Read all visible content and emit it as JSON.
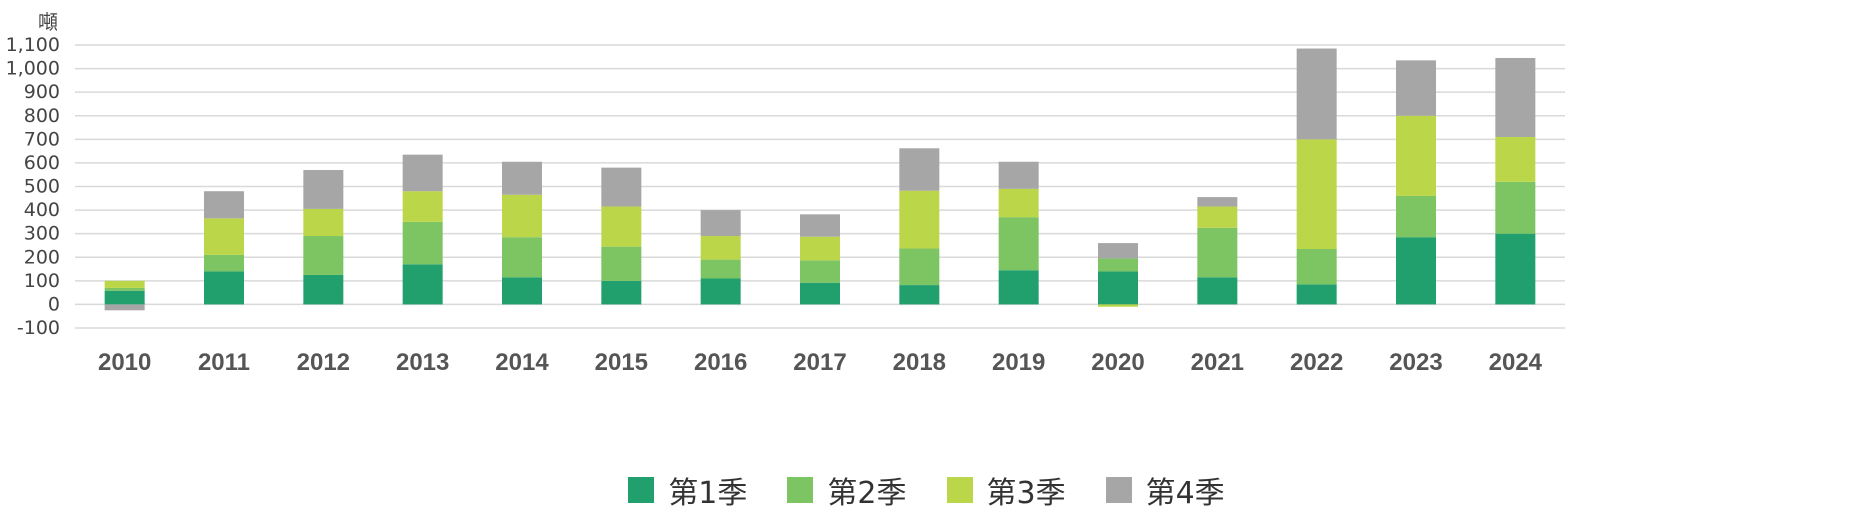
{
  "chart_data": {
    "type": "bar",
    "stacked": true,
    "unit": "噸",
    "categories": [
      "2010",
      "2011",
      "2012",
      "2013",
      "2014",
      "2015",
      "2016",
      "2017",
      "2018",
      "2019",
      "2020",
      "2021",
      "2022",
      "2023",
      "2024"
    ],
    "series": [
      {
        "name": "第1季",
        "color": "#21a06e",
        "values": [
          58,
          140,
          125,
          170,
          115,
          100,
          110,
          92,
          82,
          145,
          140,
          115,
          85,
          285,
          300
        ]
      },
      {
        "name": "第2季",
        "color": "#7dc462",
        "values": [
          12,
          70,
          165,
          180,
          170,
          145,
          80,
          95,
          155,
          225,
          55,
          210,
          150,
          175,
          220
        ]
      },
      {
        "name": "第3季",
        "color": "#bcd649",
        "values": [
          30,
          155,
          115,
          130,
          180,
          170,
          100,
          100,
          245,
          120,
          -10,
          90,
          465,
          340,
          190
        ]
      },
      {
        "name": "第4季",
        "color": "#a6a6a6",
        "values": [
          -25,
          115,
          165,
          155,
          140,
          165,
          110,
          95,
          180,
          115,
          65,
          40,
          385,
          235,
          335
        ]
      }
    ],
    "y_ticks": [
      "-100",
      "0",
      "100",
      "200",
      "300",
      "400",
      "500",
      "600",
      "700",
      "800",
      "900",
      "1,000",
      "1,100"
    ],
    "ylim": [
      -100,
      1100
    ],
    "grid": true,
    "legend_position": "bottom"
  }
}
